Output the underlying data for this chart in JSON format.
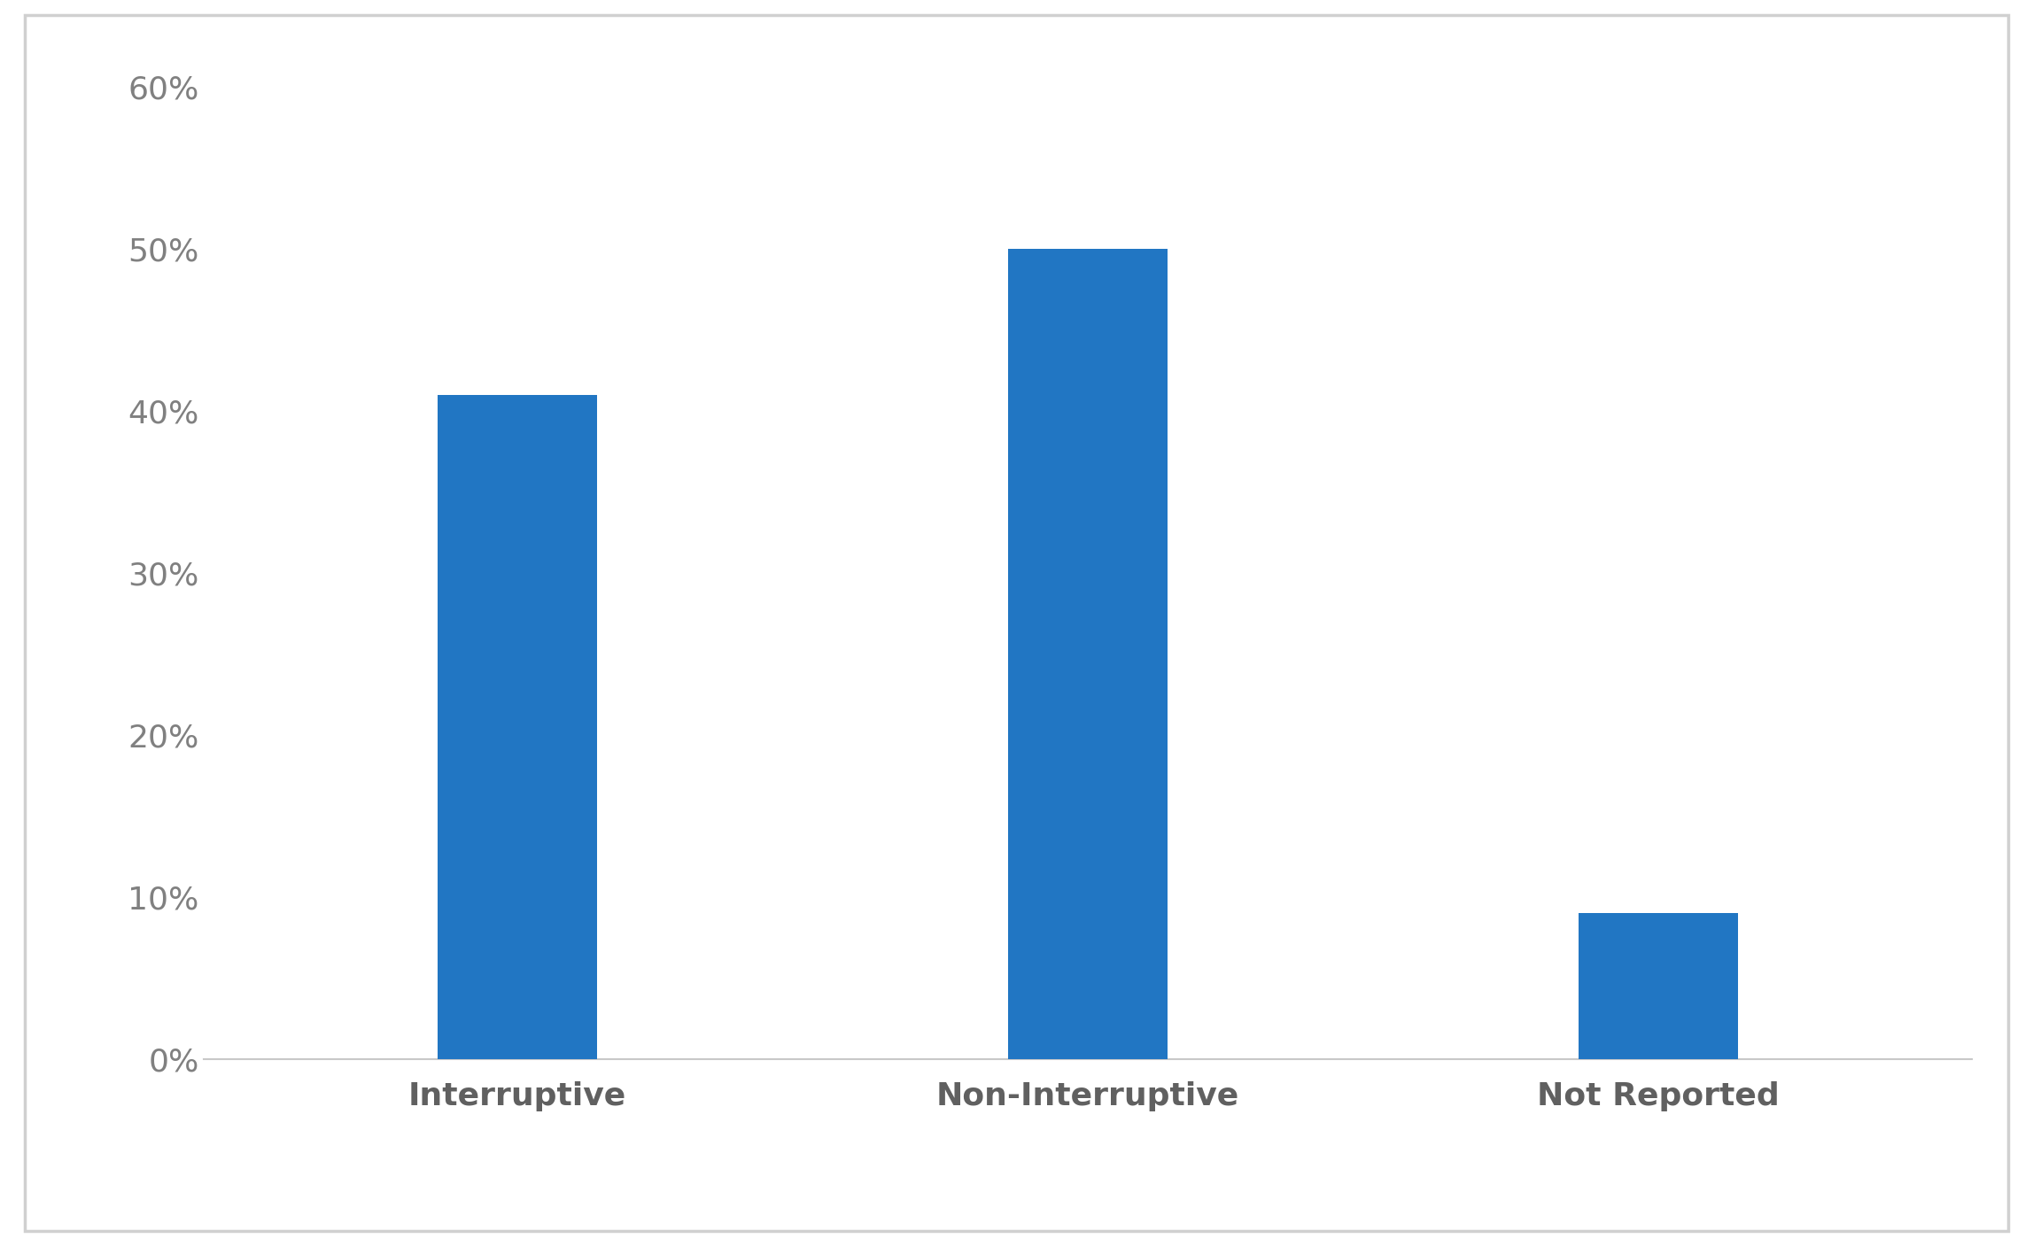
{
  "categories": [
    "Interruptive",
    "Non-Interruptive",
    "Not Reported"
  ],
  "values": [
    0.41,
    0.5,
    0.09
  ],
  "bar_color": "#2176C3",
  "ylim": [
    0,
    0.6
  ],
  "yticks": [
    0.0,
    0.1,
    0.2,
    0.3,
    0.4,
    0.5,
    0.6
  ],
  "ytick_labels": [
    "0%",
    "10%",
    "20%",
    "30%",
    "40%",
    "50%",
    "60%"
  ],
  "background_color": "#ffffff",
  "border_color": "#d0d0d0",
  "tick_label_color": "#808080",
  "xlabel_color": "#606060",
  "label_fontsize": 26,
  "tick_fontsize": 26,
  "bar_width": 0.28,
  "figsize": [
    22.95,
    14.07
  ],
  "dpi": 100
}
